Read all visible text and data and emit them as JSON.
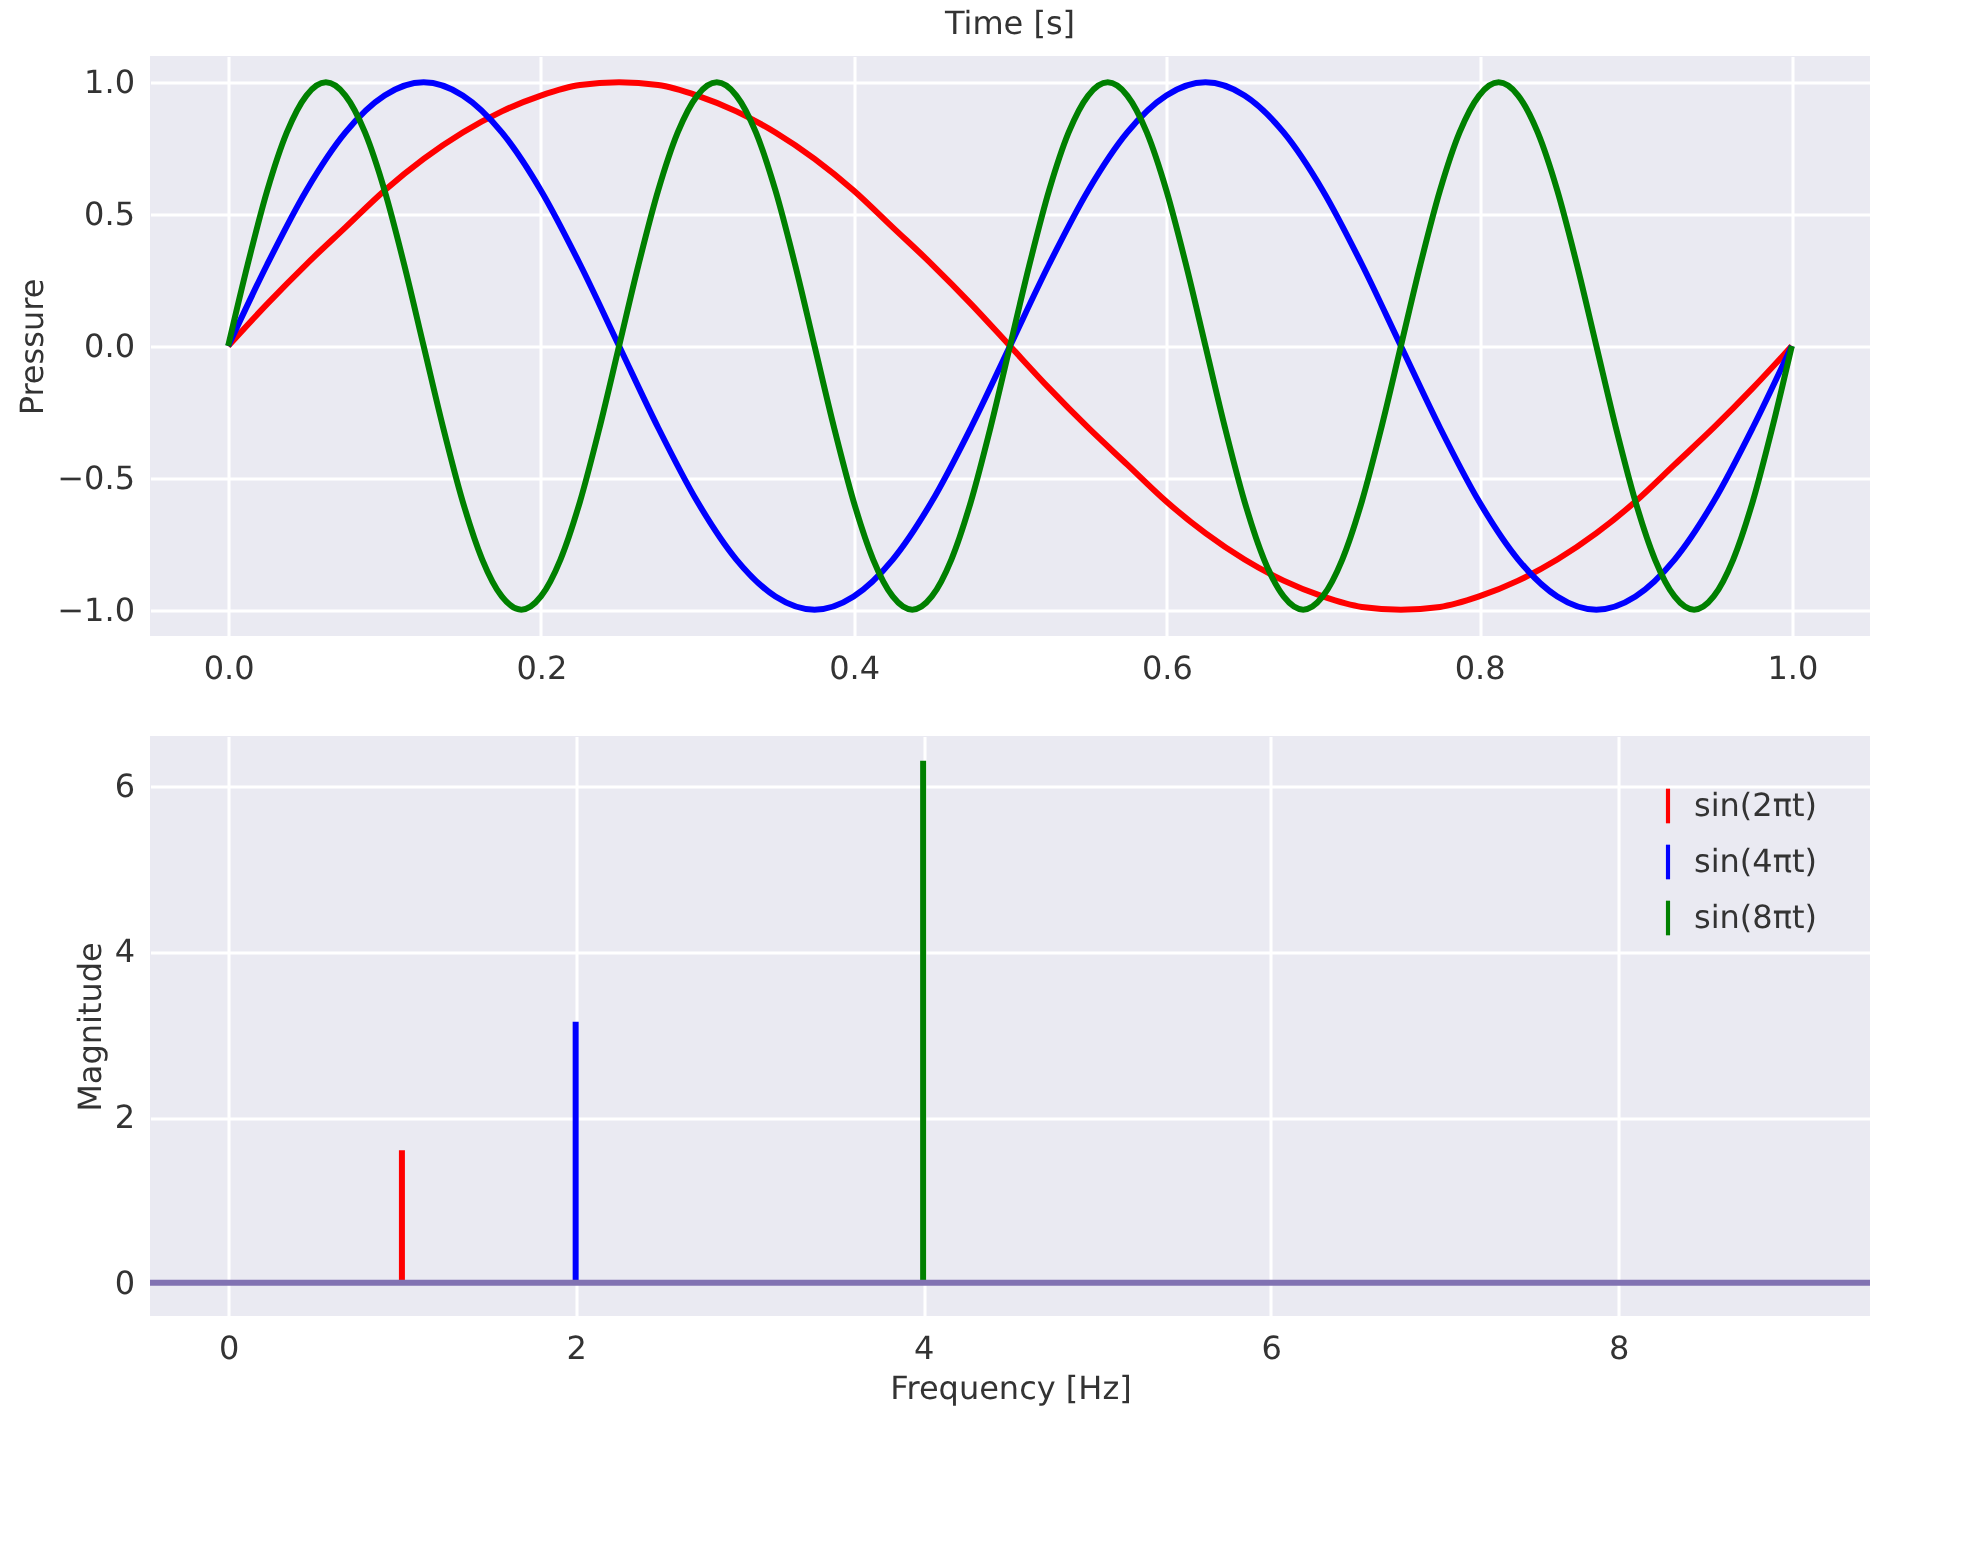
{
  "chart_data": [
    {
      "type": "line",
      "title": "Time [s]",
      "ylabel": "Pressure",
      "grid": true,
      "line_style": "solid",
      "xlim": [
        -0.05,
        1.05
      ],
      "ylim": [
        -1.1,
        1.1
      ],
      "xticks": [
        {
          "value": 0,
          "label": "0.0"
        },
        {
          "value": 0.2,
          "label": "0.2"
        },
        {
          "value": 0.4,
          "label": "0.4"
        },
        {
          "value": 0.6,
          "label": "0.6"
        },
        {
          "value": 0.8,
          "label": "0.8"
        },
        {
          "value": 1,
          "label": "1.0"
        }
      ],
      "yticks": [
        {
          "value": -1,
          "label": "−1.0"
        },
        {
          "value": -0.5,
          "label": "−0.5"
        },
        {
          "value": 0,
          "label": "0.0"
        },
        {
          "value": 0.5,
          "label": "0.5"
        },
        {
          "value": 1,
          "label": "1.0"
        }
      ],
      "x": [
        0,
        0.025,
        0.05,
        0.075,
        0.1,
        0.125,
        0.15,
        0.175,
        0.2,
        0.225,
        0.25,
        0.275,
        0.3,
        0.325,
        0.35,
        0.375,
        0.4,
        0.425,
        0.45,
        0.475,
        0.5,
        0.525,
        0.55,
        0.575,
        0.6,
        0.625,
        0.65,
        0.675,
        0.7,
        0.725,
        0.75,
        0.775,
        0.8,
        0.825,
        0.85,
        0.875,
        0.9,
        0.925,
        0.95,
        0.975,
        1
      ],
      "series": [
        {
          "color": "#ff0000",
          "values": [
            0,
            0.16,
            0.31,
            0.45,
            0.59,
            0.71,
            0.81,
            0.89,
            0.95,
            0.99,
            1,
            0.99,
            0.95,
            0.89,
            0.81,
            0.71,
            0.59,
            0.45,
            0.31,
            0.16,
            0,
            -0.16,
            -0.31,
            -0.45,
            -0.59,
            -0.71,
            -0.81,
            -0.89,
            -0.95,
            -0.99,
            -1,
            -0.99,
            -0.95,
            -0.89,
            -0.81,
            -0.71,
            -0.59,
            -0.45,
            -0.31,
            -0.16,
            0
          ]
        },
        {
          "color": "#0000ff",
          "values": [
            0,
            0.31,
            0.59,
            0.81,
            0.95,
            1,
            0.95,
            0.81,
            0.59,
            0.31,
            0,
            -0.31,
            -0.59,
            -0.81,
            -0.95,
            -1,
            -0.95,
            -0.81,
            -0.59,
            -0.31,
            0,
            0.31,
            0.59,
            0.81,
            0.95,
            1,
            0.95,
            0.81,
            0.59,
            0.31,
            0,
            -0.31,
            -0.59,
            -0.81,
            -0.95,
            -1,
            -0.95,
            -0.81,
            -0.59,
            -0.31,
            0
          ]
        },
        {
          "color": "#008000",
          "x": [
            0,
            0.0125,
            0.025,
            0.0375,
            0.05,
            0.0625,
            0.075,
            0.0875,
            0.1,
            0.1125,
            0.125,
            0.1375,
            0.15,
            0.1625,
            0.175,
            0.1875,
            0.2,
            0.2125,
            0.225,
            0.2375,
            0.25,
            0.2625,
            0.275,
            0.2875,
            0.3,
            0.3125,
            0.325,
            0.3375,
            0.35,
            0.3625,
            0.375,
            0.3875,
            0.4,
            0.4125,
            0.425,
            0.4375,
            0.45,
            0.4625,
            0.475,
            0.4875,
            0.5,
            0.5125,
            0.525,
            0.5375,
            0.55,
            0.5625,
            0.575,
            0.5875,
            0.6,
            0.6125,
            0.625,
            0.6375,
            0.65,
            0.6625,
            0.675,
            0.6875,
            0.7,
            0.7125,
            0.725,
            0.7375,
            0.75,
            0.7625,
            0.775,
            0.7875,
            0.8,
            0.8125,
            0.825,
            0.8375,
            0.85,
            0.8625,
            0.875,
            0.8875,
            0.9,
            0.9125,
            0.925,
            0.9375,
            0.95,
            0.9625,
            0.975,
            0.9875,
            1
          ],
          "values": [
            0,
            0.31,
            0.59,
            0.81,
            0.95,
            1,
            0.95,
            0.81,
            0.59,
            0.31,
            0,
            -0.31,
            -0.59,
            -0.81,
            -0.95,
            -1,
            -0.95,
            -0.81,
            -0.59,
            -0.31,
            0,
            0.31,
            0.59,
            0.81,
            0.95,
            1,
            0.95,
            0.81,
            0.59,
            0.31,
            0,
            -0.31,
            -0.59,
            -0.81,
            -0.95,
            -1,
            -0.95,
            -0.81,
            -0.59,
            -0.31,
            0,
            0.31,
            0.59,
            0.81,
            0.95,
            1,
            0.95,
            0.81,
            0.59,
            0.31,
            0,
            -0.31,
            -0.59,
            -0.81,
            -0.95,
            -1,
            -0.95,
            -0.81,
            -0.59,
            -0.31,
            0,
            0.31,
            0.59,
            0.81,
            0.95,
            1,
            0.95,
            0.81,
            0.59,
            0.31,
            0,
            -0.31,
            -0.59,
            -0.81,
            -0.95,
            -1,
            -0.95,
            -0.81,
            -0.59,
            -0.31,
            0
          ]
        }
      ]
    },
    {
      "type": "bar",
      "xlabel": "Frequency [Hz]",
      "ylabel": "Magnitude",
      "grid": true,
      "legend": "top right",
      "xlim": [
        -0.45,
        9.45
      ],
      "ylim": [
        -0.4,
        6.6
      ],
      "xticks": [
        0,
        2,
        4,
        6,
        8
      ],
      "yticks": [
        0,
        2,
        4,
        6
      ],
      "x": [
        0,
        1,
        2,
        3,
        4,
        5,
        6,
        7,
        8,
        9
      ],
      "ref_lines": [
        {
          "axis": "y",
          "value": 0,
          "color": "#8172b2"
        }
      ],
      "series": [
        {
          "name": "sin(2πt)",
          "color": "#ff0000",
          "values": [
            0,
            1.6,
            0,
            0,
            0,
            0,
            0,
            0,
            0,
            0
          ]
        },
        {
          "name": "sin(4πt)",
          "color": "#0000ff",
          "values": [
            0,
            0,
            3.15,
            0,
            0,
            0,
            0,
            0,
            0,
            0
          ]
        },
        {
          "name": "sin(8πt)",
          "color": "#008000",
          "values": [
            0,
            0,
            0,
            0,
            6.3,
            0,
            0,
            0,
            0,
            0
          ]
        }
      ]
    }
  ]
}
